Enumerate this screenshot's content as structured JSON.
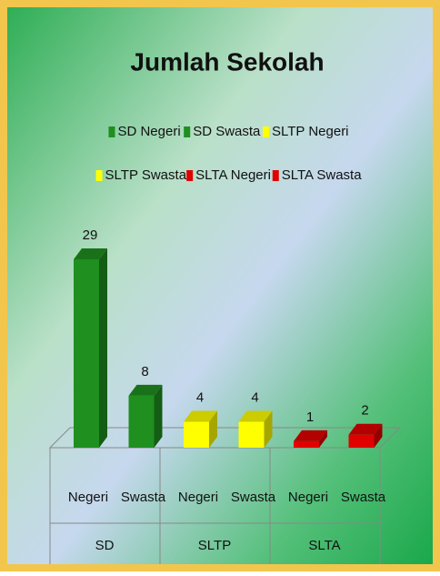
{
  "chart_data": {
    "type": "bar",
    "title": "Jumlah Sekolah",
    "categories": [
      "Negeri",
      "Swasta",
      "Negeri",
      "Swasta",
      "Negeri",
      "Swasta"
    ],
    "groups": [
      "SD",
      "SLTP",
      "SLTA"
    ],
    "series": [
      {
        "name": "SD Negeri",
        "color": "#1f8f1f",
        "values": [
          29,
          null,
          null,
          null,
          null,
          null
        ]
      },
      {
        "name": "SD Swasta",
        "color": "#1f8f1f",
        "values": [
          null,
          8,
          null,
          null,
          null,
          null
        ]
      },
      {
        "name": "SLTP Negeri",
        "color": "#ffff00",
        "values": [
          null,
          null,
          4,
          null,
          null,
          null
        ]
      },
      {
        "name": "SLTP Swasta",
        "color": "#ffff00",
        "values": [
          null,
          null,
          null,
          4,
          null,
          null
        ]
      },
      {
        "name": "SLTA Negeri",
        "color": "#e00000",
        "values": [
          null,
          null,
          null,
          null,
          1,
          null
        ]
      },
      {
        "name": "SLTA Swasta",
        "color": "#e00000",
        "values": [
          null,
          null,
          null,
          null,
          null,
          2
        ]
      }
    ]
  }
}
